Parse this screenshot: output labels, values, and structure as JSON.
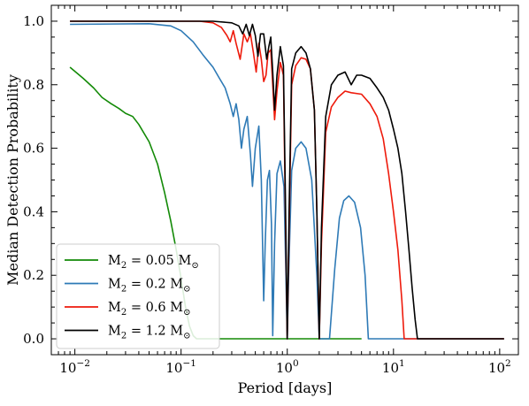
{
  "chart_data": {
    "type": "line",
    "title": "",
    "xlabel": "Period [days]",
    "ylabel": "Median Detection Probability",
    "xscale": "log",
    "xlim": [
      0.006,
      150
    ],
    "ylim": [
      -0.05,
      1.05
    ],
    "grid": false,
    "legend_position": "lower-left",
    "x_ticks": [
      {
        "value": 0.01,
        "base": "10",
        "exp": "−2"
      },
      {
        "value": 0.1,
        "base": "10",
        "exp": "−1"
      },
      {
        "value": 1,
        "base": "10",
        "exp": "0"
      },
      {
        "value": 10,
        "base": "10",
        "exp": "1"
      },
      {
        "value": 100,
        "base": "10",
        "exp": "2"
      }
    ],
    "y_ticks": [
      {
        "value": 0.0,
        "label": "0.0"
      },
      {
        "value": 0.2,
        "label": "0.2"
      },
      {
        "value": 0.4,
        "label": "0.4"
      },
      {
        "value": 0.6,
        "label": "0.6"
      },
      {
        "value": 0.8,
        "label": "0.8"
      },
      {
        "value": 1.0,
        "label": "1.0"
      }
    ],
    "series": [
      {
        "name": "M2 = 0.05 M☉",
        "legend": {
          "base": "M",
          "sub": "2",
          "mid": " = 0.05",
          "unit": "M",
          "sym": "⊙"
        },
        "color": "#138a07",
        "points": [
          [
            0.009,
            0.855
          ],
          [
            0.012,
            0.82
          ],
          [
            0.015,
            0.79
          ],
          [
            0.018,
            0.76
          ],
          [
            0.022,
            0.74
          ],
          [
            0.026,
            0.725
          ],
          [
            0.03,
            0.71
          ],
          [
            0.035,
            0.7
          ],
          [
            0.04,
            0.675
          ],
          [
            0.05,
            0.62
          ],
          [
            0.06,
            0.55
          ],
          [
            0.07,
            0.46
          ],
          [
            0.08,
            0.37
          ],
          [
            0.09,
            0.28
          ],
          [
            0.1,
            0.19
          ],
          [
            0.11,
            0.1
          ],
          [
            0.12,
            0.04
          ],
          [
            0.13,
            0.01
          ],
          [
            0.14,
            0.0
          ],
          [
            5,
            0.0
          ]
        ]
      },
      {
        "name": "M2 = 0.2 M☉",
        "legend": {
          "base": "M",
          "sub": "2",
          "mid": " = 0.2",
          "unit": "M",
          "sym": "⊙"
        },
        "color": "#2e7ab6",
        "points": [
          [
            0.009,
            0.99
          ],
          [
            0.05,
            0.992
          ],
          [
            0.08,
            0.985
          ],
          [
            0.1,
            0.97
          ],
          [
            0.13,
            0.935
          ],
          [
            0.16,
            0.895
          ],
          [
            0.2,
            0.855
          ],
          [
            0.23,
            0.82
          ],
          [
            0.26,
            0.79
          ],
          [
            0.29,
            0.74
          ],
          [
            0.31,
            0.7
          ],
          [
            0.33,
            0.74
          ],
          [
            0.35,
            0.69
          ],
          [
            0.37,
            0.6
          ],
          [
            0.39,
            0.66
          ],
          [
            0.42,
            0.7
          ],
          [
            0.45,
            0.58
          ],
          [
            0.47,
            0.48
          ],
          [
            0.5,
            0.6
          ],
          [
            0.54,
            0.67
          ],
          [
            0.57,
            0.5
          ],
          [
            0.6,
            0.12
          ],
          [
            0.62,
            0.3
          ],
          [
            0.65,
            0.5
          ],
          [
            0.68,
            0.53
          ],
          [
            0.71,
            0.36
          ],
          [
            0.73,
            0.01
          ],
          [
            0.76,
            0.3
          ],
          [
            0.8,
            0.52
          ],
          [
            0.86,
            0.56
          ],
          [
            0.93,
            0.48
          ],
          [
            0.97,
            0.2
          ],
          [
            1.0,
            0.0
          ],
          [
            1.03,
            0.2
          ],
          [
            1.1,
            0.53
          ],
          [
            1.2,
            0.6
          ],
          [
            1.35,
            0.62
          ],
          [
            1.5,
            0.6
          ],
          [
            1.7,
            0.5
          ],
          [
            1.9,
            0.2
          ],
          [
            2.0,
            0.0
          ],
          [
            2.2,
            0.0
          ],
          [
            2.5,
            0.0
          ],
          [
            2.8,
            0.22
          ],
          [
            3.1,
            0.38
          ],
          [
            3.4,
            0.435
          ],
          [
            3.8,
            0.45
          ],
          [
            4.3,
            0.43
          ],
          [
            4.9,
            0.35
          ],
          [
            5.4,
            0.2
          ],
          [
            5.8,
            0.0
          ],
          [
            110,
            0.0
          ]
        ]
      },
      {
        "name": "M2 = 0.6 M☉",
        "legend": {
          "base": "M",
          "sub": "2",
          "mid": " = 0.6",
          "unit": "M",
          "sym": "⊙"
        },
        "color": "#ee1a0b",
        "points": [
          [
            0.009,
            1.0
          ],
          [
            0.15,
            1.0
          ],
          [
            0.2,
            0.995
          ],
          [
            0.24,
            0.98
          ],
          [
            0.27,
            0.955
          ],
          [
            0.29,
            0.935
          ],
          [
            0.31,
            0.97
          ],
          [
            0.33,
            0.93
          ],
          [
            0.36,
            0.88
          ],
          [
            0.39,
            0.96
          ],
          [
            0.42,
            0.935
          ],
          [
            0.45,
            0.96
          ],
          [
            0.48,
            0.9
          ],
          [
            0.51,
            0.84
          ],
          [
            0.54,
            0.93
          ],
          [
            0.57,
            0.88
          ],
          [
            0.6,
            0.81
          ],
          [
            0.63,
            0.83
          ],
          [
            0.66,
            0.9
          ],
          [
            0.7,
            0.91
          ],
          [
            0.73,
            0.8
          ],
          [
            0.76,
            0.69
          ],
          [
            0.8,
            0.78
          ],
          [
            0.86,
            0.87
          ],
          [
            0.92,
            0.83
          ],
          [
            0.96,
            0.4
          ],
          [
            1.0,
            0.0
          ],
          [
            1.04,
            0.35
          ],
          [
            1.1,
            0.8
          ],
          [
            1.2,
            0.86
          ],
          [
            1.35,
            0.885
          ],
          [
            1.5,
            0.88
          ],
          [
            1.65,
            0.85
          ],
          [
            1.8,
            0.72
          ],
          [
            1.9,
            0.4
          ],
          [
            2.0,
            0.0
          ],
          [
            2.1,
            0.3
          ],
          [
            2.3,
            0.65
          ],
          [
            2.6,
            0.73
          ],
          [
            3.0,
            0.76
          ],
          [
            3.5,
            0.78
          ],
          [
            4.0,
            0.775
          ],
          [
            5.0,
            0.77
          ],
          [
            6.0,
            0.74
          ],
          [
            7.0,
            0.7
          ],
          [
            8.0,
            0.63
          ],
          [
            9.0,
            0.52
          ],
          [
            10.0,
            0.4
          ],
          [
            11.0,
            0.28
          ],
          [
            12.0,
            0.12
          ],
          [
            12.6,
            0.0
          ],
          [
            110,
            0.0
          ]
        ]
      },
      {
        "name": "M2 = 1.2 M☉",
        "legend": {
          "base": "M",
          "sub": "2",
          "mid": " = 1.2",
          "unit": "M",
          "sym": "⊙"
        },
        "color": "#000000",
        "points": [
          [
            0.009,
            1.0
          ],
          [
            0.2,
            1.0
          ],
          [
            0.3,
            0.995
          ],
          [
            0.35,
            0.985
          ],
          [
            0.38,
            0.96
          ],
          [
            0.41,
            0.99
          ],
          [
            0.44,
            0.955
          ],
          [
            0.47,
            0.99
          ],
          [
            0.5,
            0.955
          ],
          [
            0.53,
            0.89
          ],
          [
            0.56,
            0.96
          ],
          [
            0.6,
            0.96
          ],
          [
            0.64,
            0.88
          ],
          [
            0.67,
            0.92
          ],
          [
            0.7,
            0.95
          ],
          [
            0.73,
            0.84
          ],
          [
            0.76,
            0.72
          ],
          [
            0.8,
            0.83
          ],
          [
            0.86,
            0.92
          ],
          [
            0.92,
            0.86
          ],
          [
            0.96,
            0.45
          ],
          [
            1.0,
            0.0
          ],
          [
            1.04,
            0.4
          ],
          [
            1.1,
            0.85
          ],
          [
            1.2,
            0.9
          ],
          [
            1.35,
            0.92
          ],
          [
            1.5,
            0.9
          ],
          [
            1.65,
            0.85
          ],
          [
            1.8,
            0.72
          ],
          [
            1.9,
            0.4
          ],
          [
            2.0,
            0.0
          ],
          [
            2.1,
            0.35
          ],
          [
            2.3,
            0.7
          ],
          [
            2.6,
            0.8
          ],
          [
            3.0,
            0.83
          ],
          [
            3.5,
            0.84
          ],
          [
            4.0,
            0.8
          ],
          [
            4.5,
            0.83
          ],
          [
            5.0,
            0.83
          ],
          [
            6.0,
            0.82
          ],
          [
            7.0,
            0.79
          ],
          [
            8.0,
            0.76
          ],
          [
            9.0,
            0.72
          ],
          [
            10.0,
            0.66
          ],
          [
            11.0,
            0.6
          ],
          [
            12.0,
            0.52
          ],
          [
            13.0,
            0.4
          ],
          [
            14.0,
            0.28
          ],
          [
            15.0,
            0.16
          ],
          [
            16.0,
            0.06
          ],
          [
            16.8,
            0.0
          ],
          [
            110,
            0.0
          ]
        ]
      }
    ]
  }
}
